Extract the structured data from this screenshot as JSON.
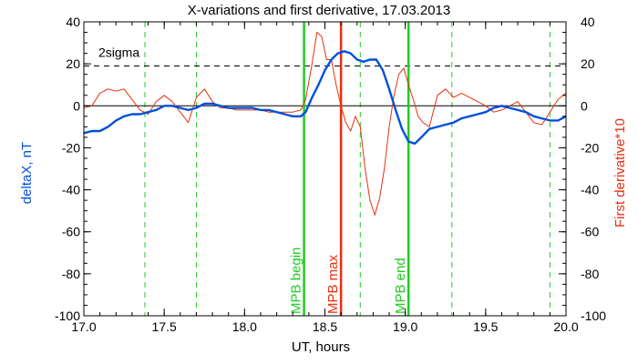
{
  "chart_data": {
    "type": "line",
    "title": "X-variations and first derivative, 17.03.2013",
    "xlabel": "UT, hours",
    "ylabel_left": "deltaX, nT",
    "ylabel_right": "First derivative*10",
    "xlim": [
      17.0,
      20.0
    ],
    "ylim": [
      -100,
      40
    ],
    "xticks": [
      "17.0",
      "17.5",
      "18.0",
      "18.5",
      "19.0",
      "19.5",
      "20.0"
    ],
    "xtick_values": [
      17.0,
      17.5,
      18.0,
      18.5,
      19.0,
      19.5,
      20.0
    ],
    "yticks": [
      "40",
      "20",
      "0",
      "-20",
      "-40",
      "-60",
      "-80",
      "-100"
    ],
    "ytick_values": [
      40,
      20,
      0,
      -20,
      -40,
      -60,
      -80,
      -100
    ],
    "grid": false,
    "series": [
      {
        "name": "deltaX",
        "color": "#0050dc",
        "x": [
          17.0,
          17.05,
          17.1,
          17.15,
          17.2,
          17.25,
          17.3,
          17.35,
          17.4,
          17.45,
          17.5,
          17.55,
          17.6,
          17.65,
          17.7,
          17.75,
          17.8,
          17.85,
          17.9,
          17.95,
          18.0,
          18.05,
          18.1,
          18.15,
          18.2,
          18.25,
          18.3,
          18.35,
          18.38,
          18.42,
          18.46,
          18.5,
          18.54,
          18.58,
          18.62,
          18.66,
          18.7,
          18.74,
          18.78,
          18.82,
          18.86,
          18.9,
          18.94,
          18.98,
          19.02,
          19.06,
          19.1,
          19.15,
          19.2,
          19.25,
          19.3,
          19.35,
          19.4,
          19.45,
          19.5,
          19.55,
          19.6,
          19.65,
          19.7,
          19.75,
          19.8,
          19.85,
          19.9,
          19.95,
          20.0
        ],
        "y": [
          -13,
          -12,
          -12,
          -10,
          -7,
          -5,
          -4,
          -4,
          -3,
          -2,
          0,
          0,
          -1,
          -2,
          -1,
          1,
          1,
          0,
          -1,
          -1,
          -1,
          -1,
          -2,
          -2,
          -3,
          -4,
          -5,
          -5,
          -3,
          4,
          10,
          17,
          22,
          25,
          26,
          25,
          22,
          21,
          22,
          22,
          17,
          8,
          -2,
          -11,
          -17,
          -18,
          -15,
          -11,
          -10,
          -9,
          -8,
          -6,
          -5,
          -4,
          -3,
          -1,
          0,
          -1,
          -2,
          -3,
          -5,
          -6,
          -7,
          -7,
          -5
        ]
      },
      {
        "name": "First derivative*10",
        "color": "#e83010",
        "x": [
          17.0,
          17.05,
          17.1,
          17.15,
          17.2,
          17.25,
          17.3,
          17.35,
          17.4,
          17.45,
          17.5,
          17.55,
          17.6,
          17.65,
          17.7,
          17.75,
          17.8,
          17.85,
          17.9,
          17.95,
          18.0,
          18.05,
          18.1,
          18.15,
          18.2,
          18.25,
          18.3,
          18.35,
          18.38,
          18.42,
          18.45,
          18.48,
          18.51,
          18.54,
          18.57,
          18.6,
          18.63,
          18.66,
          18.69,
          18.72,
          18.75,
          18.78,
          18.81,
          18.84,
          18.87,
          18.9,
          18.93,
          18.96,
          18.99,
          19.02,
          19.05,
          19.08,
          19.11,
          19.15,
          19.2,
          19.25,
          19.3,
          19.35,
          19.4,
          19.45,
          19.5,
          19.55,
          19.6,
          19.65,
          19.7,
          19.75,
          19.8,
          19.85,
          19.9,
          19.95,
          20.0
        ],
        "y": [
          -1,
          0,
          6,
          8,
          7,
          8,
          3,
          -2,
          -4,
          2,
          5,
          2,
          -3,
          -8,
          4,
          8,
          2,
          -1,
          -1,
          -2,
          -2,
          -2,
          -2,
          -3,
          -3,
          -3,
          -3,
          -2,
          3,
          20,
          35,
          33,
          22,
          22,
          10,
          0,
          -8,
          -12,
          -5,
          -10,
          -30,
          -45,
          -52,
          -44,
          -30,
          -10,
          5,
          15,
          18,
          10,
          3,
          -5,
          -8,
          -10,
          5,
          8,
          4,
          6,
          4,
          2,
          0,
          -3,
          -2,
          0,
          2,
          -3,
          -8,
          -9,
          -3,
          3,
          6
        ]
      }
    ],
    "reference_lines": {
      "zero": 0,
      "sigma_level": 19,
      "sigma_label": "2sigma"
    },
    "markers": [
      {
        "x": 18.37,
        "label": "MPB begin",
        "color": "#22cc22"
      },
      {
        "x": 18.6,
        "label": "MPB max",
        "color": "#e83010"
      },
      {
        "x": 19.02,
        "label": "MPB end",
        "color": "#22cc22"
      }
    ],
    "dashed_markers": [
      17.38,
      17.7,
      18.72,
      19.29,
      19.9
    ]
  }
}
